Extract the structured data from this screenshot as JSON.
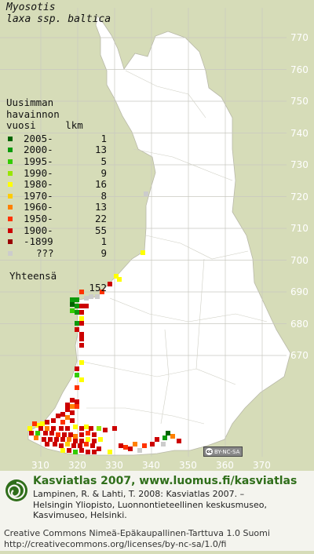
{
  "species": {
    "line1": "Myosotis",
    "line2": "laxa ssp. baltica"
  },
  "legend": {
    "header": [
      "Uusimman",
      "havainnon",
      "vuosi     lkm"
    ],
    "rows": [
      {
        "label": "2005-",
        "count": "1",
        "color": "#006400"
      },
      {
        "label": "2000-",
        "count": "13",
        "color": "#0a9a0a"
      },
      {
        "label": "1995-",
        "count": "5",
        "color": "#33cc00"
      },
      {
        "label": "1990-",
        "count": "9",
        "color": "#99e600"
      },
      {
        "label": "1980-",
        "count": "16",
        "color": "#ffff00"
      },
      {
        "label": "1970-",
        "count": "8",
        "color": "#ffcc00"
      },
      {
        "label": "1960-",
        "count": "13",
        "color": "#ff8000"
      },
      {
        "label": "1950-",
        "count": "22",
        "color": "#ff3300"
      },
      {
        "label": "1900-",
        "count": "55",
        "color": "#cc0000"
      },
      {
        "label": "-1899",
        "count": "1",
        "color": "#990000"
      },
      {
        "label": "???",
        "count": "9",
        "color": "#cccccc"
      }
    ],
    "total_label": "Yhteensä",
    "total_value": "152"
  },
  "axes": {
    "y_labels": [
      "770",
      "760",
      "750",
      "740",
      "730",
      "720",
      "710",
      "700",
      "690",
      "680",
      "670"
    ],
    "x_labels": [
      "310",
      "320",
      "330",
      "340",
      "350",
      "360",
      "370"
    ]
  },
  "colors": {
    "background": "#d6dcb8",
    "land": "#ffffff",
    "grid": "#c8c8c0",
    "accent": "#2f6e1a"
  },
  "cc_badge": "BY-NC-SA",
  "footer": {
    "title": "Kasviatlas 2007, www.luomus.fi/kasviatlas",
    "citation": "Lampinen, R. & Lahti, T. 2008: Kasviatlas 2007. –\nHelsingin Yliopisto, Luonnontieteellinen keskusmuseo,\nKasvimuseo, Helsinki.",
    "license": "Creative Commons Nimeä-Epäkaupallinen-Tarttuva 1.0 Suomi\nhttp://creativecommons.org/licenses/by-nc-sa/1.0/fi"
  }
}
